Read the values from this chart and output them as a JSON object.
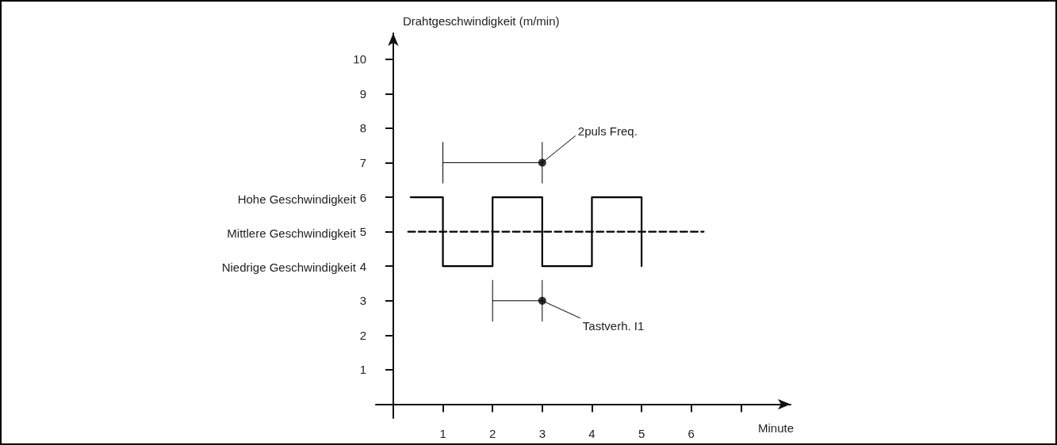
{
  "chart_data": {
    "type": "line",
    "xlabel": "Minute",
    "ylabel": "Drahtgeschwindigkeit (m/min)",
    "xlim": [
      -0.35,
      8
    ],
    "ylim": [
      -0.4,
      10.75
    ],
    "xticks": [
      1,
      2,
      3,
      4,
      5,
      6,
      {
        "value": 7,
        "label": null
      }
    ],
    "yticks": [
      1,
      2,
      3,
      4,
      5,
      6,
      7,
      8,
      9,
      10
    ],
    "grid": false,
    "marker": "none",
    "series": [
      {
        "type": "step",
        "x": [
          0.35,
          1,
          2,
          3,
          4,
          5
        ],
        "values": [
          6,
          4,
          6,
          4,
          6,
          4
        ],
        "color": "#000000"
      },
      {
        "type": "line",
        "x": [
          0.3,
          6.25
        ],
        "values": [
          5,
          5
        ],
        "color": "#000000",
        "line_style": "dashed"
      },
      {
        "type": "line",
        "x": [
          1,
          3
        ],
        "values": [
          7,
          7
        ],
        "color": "#000000",
        "errors": [
          0.6,
          0.6
        ]
      },
      {
        "type": "line",
        "x": [
          2,
          3
        ],
        "values": [
          3,
          3
        ],
        "color": "#000000",
        "errors": [
          0.6,
          0.6
        ]
      },
      {
        "type": "scatter",
        "x": [
          3,
          3
        ],
        "values": [
          7,
          3
        ],
        "color": "#000000",
        "marker": "circle"
      }
    ],
    "annotations": [
      "Hohe Geschwindigkeit",
      "Mittlere Geschwindigkeit",
      "Niedrige Geschwindigkeit",
      {
        "text": "2puls Freq.",
        "x": 3,
        "y": 7
      },
      {
        "text": "Tastverh. I1",
        "x": 3,
        "y": 3
      }
    ]
  }
}
